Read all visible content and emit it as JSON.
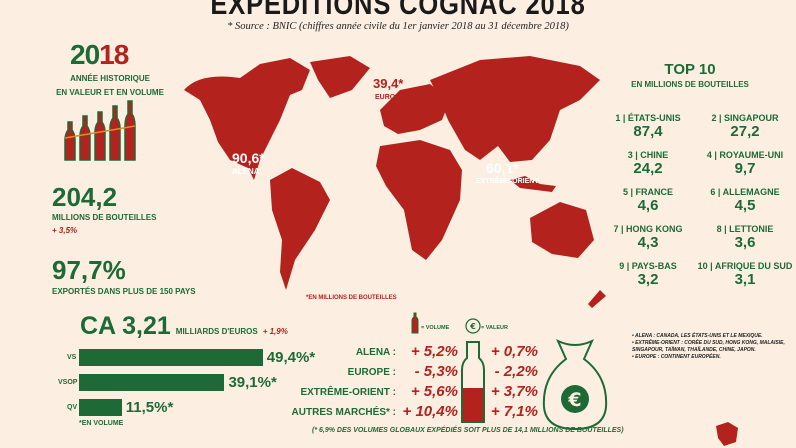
{
  "title": "EXPEDITIONS COGNAC 2018",
  "source": "* Source : BNIC (chiffres année civile du 1er janvier 2018 au 31 décembre 2018)",
  "left": {
    "year_a": "20",
    "year_b": "18",
    "year_caption_1": "ANNÉE HISTORIQUE",
    "year_caption_2": "EN VALEUR ET EN VOLUME",
    "bottles_value": "204,2",
    "bottles_label": "MILLIONS DE BOUTEILLES",
    "bottles_change": "+ 3,5%",
    "export_value": "97,7%",
    "export_label": "EXPORTÉS DANS PLUS DE 150 PAYS",
    "ca_value": "CA 3,21",
    "ca_unit": "MILLIARDS D'EUROS",
    "ca_change": "+ 1,9%",
    "note": "*EN VOLUME"
  },
  "chart_data": {
    "type": "bar",
    "categories": [
      "VS",
      "VSOP",
      "QV"
    ],
    "values": [
      49.4,
      39.1,
      11.5
    ],
    "labels": [
      "49,4%*",
      "39,1%*",
      "11,5%*"
    ],
    "xlim": [
      0,
      50
    ]
  },
  "map": {
    "alena_value": "90,6*",
    "alena_label": "ALENA",
    "europe_value": "39,4*",
    "europe_label": "EUROPE",
    "asia_value": "60,1*",
    "asia_label": "EXTRÊME-ORIENT",
    "note": "*EN MILLIONS DE BOUTEILLES"
  },
  "top10": {
    "title": "TOP 10",
    "subtitle": "EN MILLIONS DE BOUTEILLES",
    "items": [
      {
        "name": "1 | ÉTATS-UNIS",
        "value": "87,4"
      },
      {
        "name": "2 | SINGAPOUR",
        "value": "27,2"
      },
      {
        "name": "3 | CHINE",
        "value": "24,2"
      },
      {
        "name": "4 | ROYAUME-UNI",
        "value": "9,7"
      },
      {
        "name": "5 | FRANCE",
        "value": "4,6"
      },
      {
        "name": "6 | ALLEMAGNE",
        "value": "4,5"
      },
      {
        "name": "7 | HONG KONG",
        "value": "4,3"
      },
      {
        "name": "8 | LETTONIE",
        "value": "3,6"
      },
      {
        "name": "9 | PAYS-BAS",
        "value": "3,2"
      },
      {
        "name": "10 | AFRIQUE DU SUD",
        "value": "3,1"
      }
    ]
  },
  "markets": {
    "legend_volume": "= VOLUME",
    "legend_value": "= VALEUR",
    "rows": [
      {
        "name": "ALENA :",
        "volume": "+ 5,2%",
        "value": "+ 0,7%"
      },
      {
        "name": "EUROPE :",
        "volume": "- 5,3%",
        "value": "- 2,2%"
      },
      {
        "name": "EXTRÊME-ORIENT :",
        "volume": "+ 5,6%",
        "value": "+ 3,7%"
      },
      {
        "name": "AUTRES MARCHÉS* :",
        "volume": "+ 10,4%",
        "value": "+ 7,1%"
      }
    ],
    "footnote": "(* 6,9% DES VOLUMES GLOBAUX EXPÉDIÉS SOIT PLUS DE 14,1 MILLIONS DE BOUTEILLES)"
  },
  "legend_notes": [
    "• ALENA : CANADA, LES ÉTATS-UNIS ET LE MEXIQUE.",
    "• EXTRÊME-ORIENT : CORÉE DU SUD, HONG KONG, MALAISIE, SINGAPOUR, TAÏWAN, THAÏLANDE, CHINE, JAPON.",
    "• EUROPE : CONTINENT EUROPÉEN."
  ],
  "colors": {
    "green": "#1d6a36",
    "red": "#b3221d",
    "background": "#fcefe2"
  }
}
